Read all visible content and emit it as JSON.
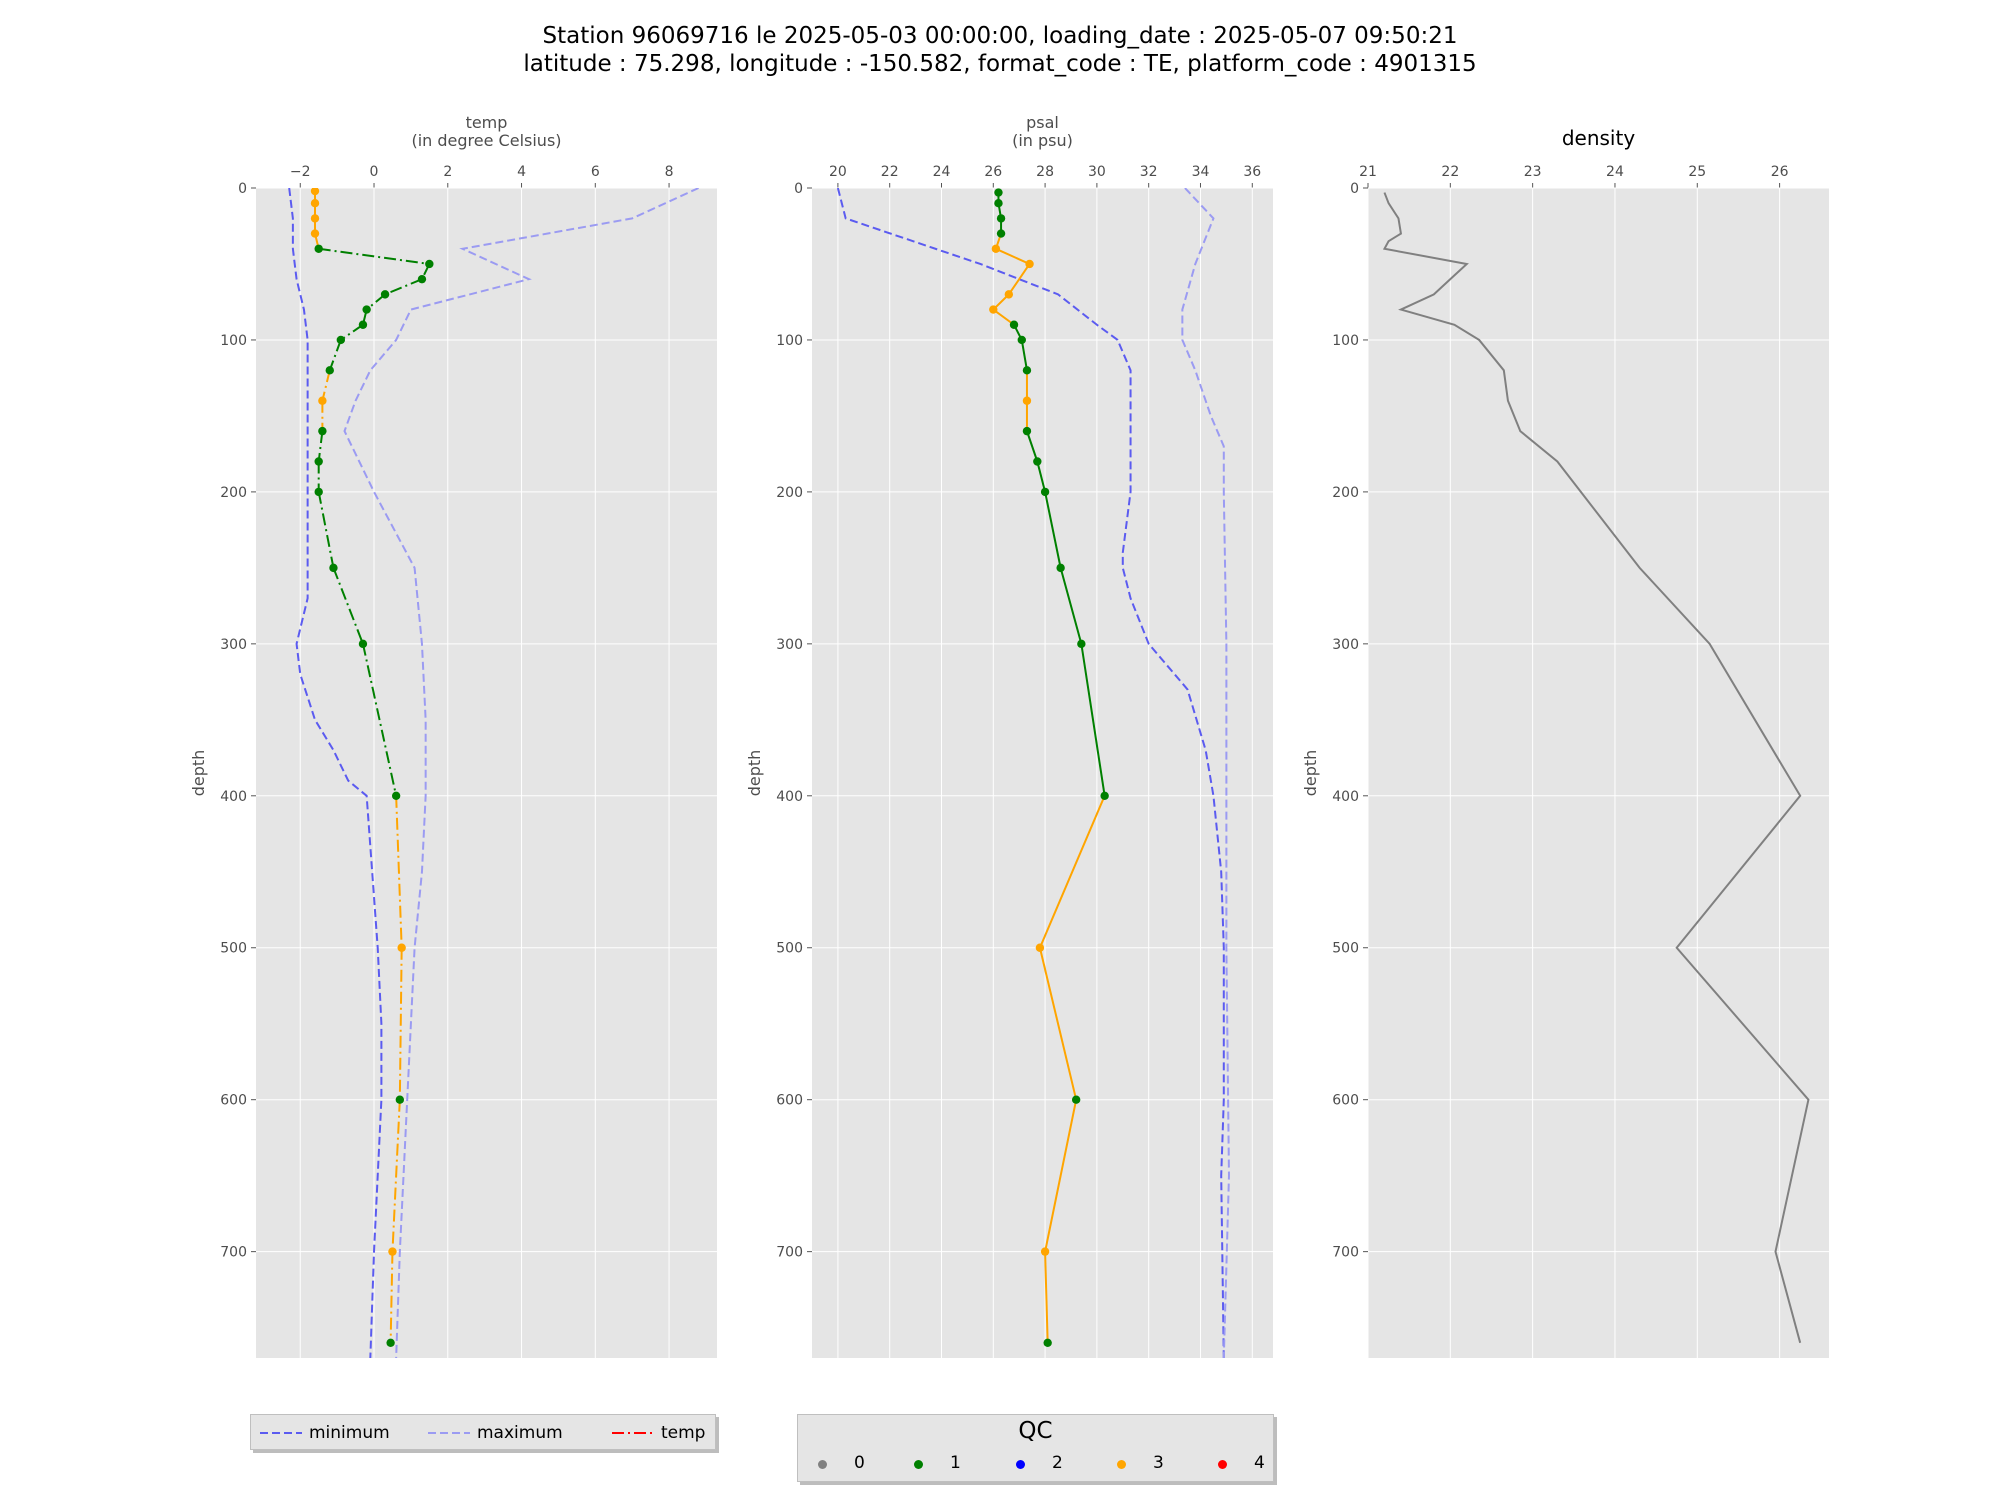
{
  "title": {
    "line1": "Station 96069716 le 2025-05-03 00:00:00, loading_date : 2025-05-07 09:50:21",
    "line2": "latitude : 75.298, longitude : -150.582, format_code : TE, platform_code : 4901315"
  },
  "colors": {
    "panel_bg": "#e5e5e5",
    "grid": "#ffffff",
    "minimum": "#5b5bf0",
    "maximum": "#9b9bf2",
    "qc_0": "#808080",
    "qc_1": "#008000",
    "qc_2": "#0000ff",
    "qc_3": "#ffa500",
    "qc_4": "#ff0000",
    "density_line": "#808080"
  },
  "chart_data": [
    {
      "type": "line",
      "title": "",
      "xlabel": "temp\n(in degree Celsius)",
      "ylabel": "depth",
      "xlim": [
        -3.2,
        9.3
      ],
      "ylim": [
        770,
        0
      ],
      "xticks": [
        -2,
        0,
        2,
        4,
        6,
        8
      ],
      "yticks": [
        0,
        100,
        200,
        300,
        400,
        500,
        600,
        700
      ],
      "grid": true,
      "series": [
        {
          "name": "minimum",
          "style": "dashed",
          "color_key": "minimum",
          "x": [
            -2.3,
            -2.2,
            -2.2,
            -2.1,
            -1.9,
            -1.8,
            -1.8,
            -1.8,
            -1.8,
            -1.8,
            -2.1,
            -2.0,
            -1.6,
            -1.1,
            -0.7,
            -0.2,
            0.1,
            0.2,
            0.2,
            0.1,
            0.0,
            -0.1
          ],
          "y": [
            0,
            20,
            40,
            60,
            80,
            100,
            150,
            200,
            250,
            270,
            300,
            320,
            350,
            370,
            390,
            400,
            500,
            550,
            600,
            650,
            700,
            770
          ]
        },
        {
          "name": "maximum",
          "style": "dashed",
          "color_key": "maximum",
          "x": [
            8.8,
            7.0,
            2.4,
            4.2,
            1.0,
            0.6,
            -0.1,
            -0.5,
            -0.8,
            0.0,
            1.1,
            1.3,
            1.4,
            1.4,
            1.3,
            1.1,
            0.9,
            0.7,
            0.6
          ],
          "y": [
            0,
            20,
            40,
            60,
            80,
            100,
            120,
            140,
            160,
            200,
            250,
            300,
            350,
            400,
            450,
            500,
            600,
            700,
            770
          ]
        },
        {
          "name": "temp",
          "style": "dashdot",
          "x": [
            -1.6,
            -1.6,
            -1.6,
            -1.6,
            -1.5,
            1.5,
            1.3,
            0.3,
            -0.2,
            -0.3,
            -0.9,
            -1.2,
            -1.4,
            -1.4,
            -1.5,
            -1.5,
            -1.1,
            -0.3,
            0.6,
            0.75,
            0.7,
            0.5,
            0.45
          ],
          "y": [
            2,
            10,
            20,
            30,
            40,
            50,
            60,
            70,
            80,
            90,
            100,
            120,
            140,
            160,
            180,
            200,
            250,
            300,
            400,
            500,
            600,
            700,
            760
          ],
          "qc": [
            3,
            3,
            3,
            3,
            1,
            1,
            1,
            1,
            1,
            1,
            1,
            1,
            3,
            1,
            1,
            1,
            1,
            1,
            1,
            3,
            1,
            3,
            1
          ]
        }
      ]
    },
    {
      "type": "line",
      "title": "",
      "xlabel": "psal\n(in psu)",
      "ylabel": "depth",
      "xlim": [
        19.0,
        36.8
      ],
      "ylim": [
        770,
        0
      ],
      "xticks": [
        20,
        22,
        24,
        26,
        28,
        30,
        32,
        34,
        36
      ],
      "yticks": [
        0,
        100,
        200,
        300,
        400,
        500,
        600,
        700
      ],
      "grid": true,
      "series": [
        {
          "name": "minimum",
          "style": "dashed",
          "color_key": "minimum",
          "x": [
            20.0,
            20.3,
            25.5,
            28.5,
            30.0,
            30.8,
            31.3,
            31.3,
            31.3,
            31.0,
            31.0,
            31.3,
            32.0,
            33.5,
            34.2,
            34.5,
            34.8,
            34.9,
            34.9,
            34.8,
            34.9
          ],
          "y": [
            0,
            20,
            50,
            70,
            90,
            100,
            120,
            150,
            200,
            240,
            250,
            270,
            300,
            330,
            370,
            400,
            450,
            500,
            600,
            650,
            770
          ]
        },
        {
          "name": "maximum",
          "style": "dashed",
          "color_key": "maximum",
          "x": [
            33.4,
            34.5,
            33.8,
            33.3,
            33.3,
            33.8,
            34.4,
            34.9,
            34.9,
            35.0,
            35.0,
            35.0,
            35.1,
            34.9
          ],
          "y": [
            0,
            20,
            50,
            80,
            100,
            120,
            150,
            170,
            200,
            300,
            400,
            500,
            650,
            770
          ]
        },
        {
          "name": "psal",
          "style": "solid",
          "x": [
            26.2,
            26.2,
            26.3,
            26.3,
            26.1,
            27.4,
            26.6,
            26.0,
            26.8,
            27.1,
            27.3,
            27.3,
            27.3,
            27.7,
            28.0,
            28.6,
            29.4,
            30.3,
            27.8,
            29.2,
            28.0,
            28.1
          ],
          "y": [
            3,
            10,
            20,
            30,
            40,
            50,
            70,
            80,
            90,
            100,
            120,
            140,
            160,
            180,
            200,
            250,
            300,
            400,
            500,
            600,
            700,
            760
          ],
          "qc": [
            1,
            1,
            1,
            1,
            3,
            3,
            3,
            3,
            1,
            1,
            1,
            3,
            1,
            1,
            1,
            1,
            1,
            1,
            3,
            1,
            3,
            1
          ]
        }
      ]
    },
    {
      "type": "line",
      "title": "density",
      "xlabel": "",
      "ylabel": "depth",
      "xlim": [
        21.0,
        26.6
      ],
      "ylim": [
        770,
        0
      ],
      "xticks": [
        21,
        22,
        23,
        24,
        25,
        26
      ],
      "yticks": [
        0,
        100,
        200,
        300,
        400,
        500,
        600,
        700
      ],
      "grid": true,
      "series": [
        {
          "name": "density",
          "style": "solid",
          "color_key": "density_line",
          "x": [
            21.2,
            21.25,
            21.37,
            21.4,
            21.25,
            21.2,
            22.2,
            22.0,
            21.8,
            21.4,
            22.05,
            22.35,
            22.65,
            22.7,
            22.85,
            23.3,
            24.3,
            25.15,
            26.25,
            24.75,
            26.35,
            25.95,
            26.25
          ],
          "y": [
            3,
            10,
            20,
            30,
            35,
            40,
            50,
            60,
            70,
            80,
            90,
            100,
            120,
            140,
            160,
            180,
            250,
            300,
            400,
            500,
            600,
            700,
            760
          ]
        }
      ]
    }
  ],
  "legend_lines": {
    "items": [
      {
        "label": "minimum",
        "color_key": "minimum",
        "dash": "8,4"
      },
      {
        "label": "maximum",
        "color_key": "maximum",
        "dash": "8,4"
      },
      {
        "label": "temp",
        "color_key": "qc_4",
        "dash": "12,4,2,4"
      }
    ]
  },
  "legend_qc": {
    "title": "QC",
    "items": [
      {
        "label": "0",
        "color_key": "qc_0"
      },
      {
        "label": "1",
        "color_key": "qc_1"
      },
      {
        "label": "2",
        "color_key": "qc_2"
      },
      {
        "label": "3",
        "color_key": "qc_3"
      },
      {
        "label": "4",
        "color_key": "qc_4"
      }
    ]
  }
}
